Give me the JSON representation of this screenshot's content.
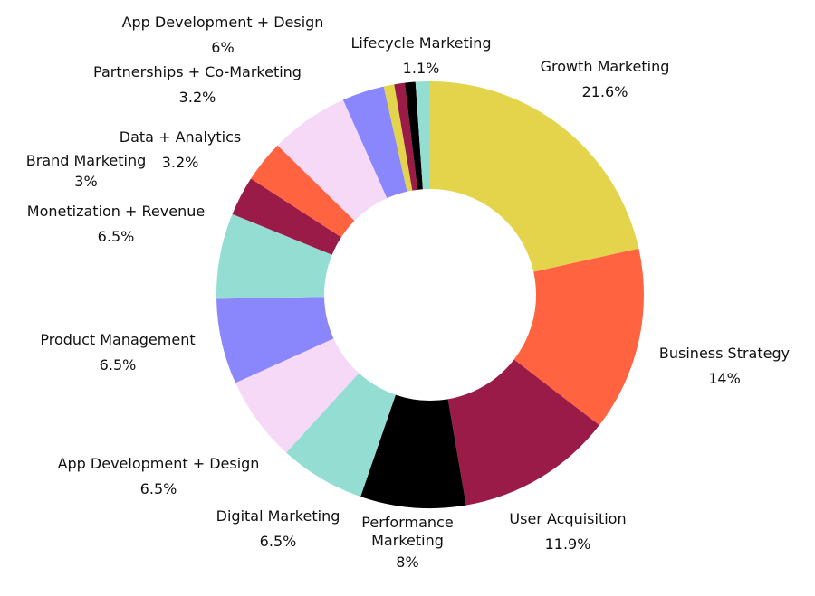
{
  "chart_data": {
    "type": "donut",
    "categories": [
      "Growth Marketing",
      "Business Strategy",
      "User Acquisition",
      "Performance Marketing",
      "Digital Marketing",
      "App Development + Design",
      "Product Management",
      "Monetization + Revenue",
      "Brand Marketing",
      "Data + Analytics",
      "App Development + Design",
      "Partnerships + Co-Marketing",
      null,
      null,
      null,
      "Lifecycle Marketing"
    ],
    "values": [
      21.6,
      14,
      11.9,
      8,
      6.5,
      6.5,
      6.5,
      6.5,
      3,
      3.2,
      6,
      3.2,
      0.8,
      0.8,
      0.8,
      1.1
    ],
    "value_labels": [
      "21.6%",
      "14%",
      "11.9%",
      "8%",
      "6.5%",
      "6.5%",
      "6.5%",
      "6.5%",
      "3%",
      "3.2%",
      "6%",
      "3.2%",
      null,
      null,
      null,
      "1.1%"
    ],
    "colors": [
      "#e3d44c",
      "#ff6340",
      "#9a1b47",
      "#000000",
      "#93ddd3",
      "#f5d9f7",
      "#8a86fc",
      "#93ddd3",
      "#9a1b47",
      "#ff6340",
      "#f5d9f7",
      "#8a86fc",
      "#e3d44c",
      "#9a1b47",
      "#000000",
      "#93ddd3"
    ]
  }
}
